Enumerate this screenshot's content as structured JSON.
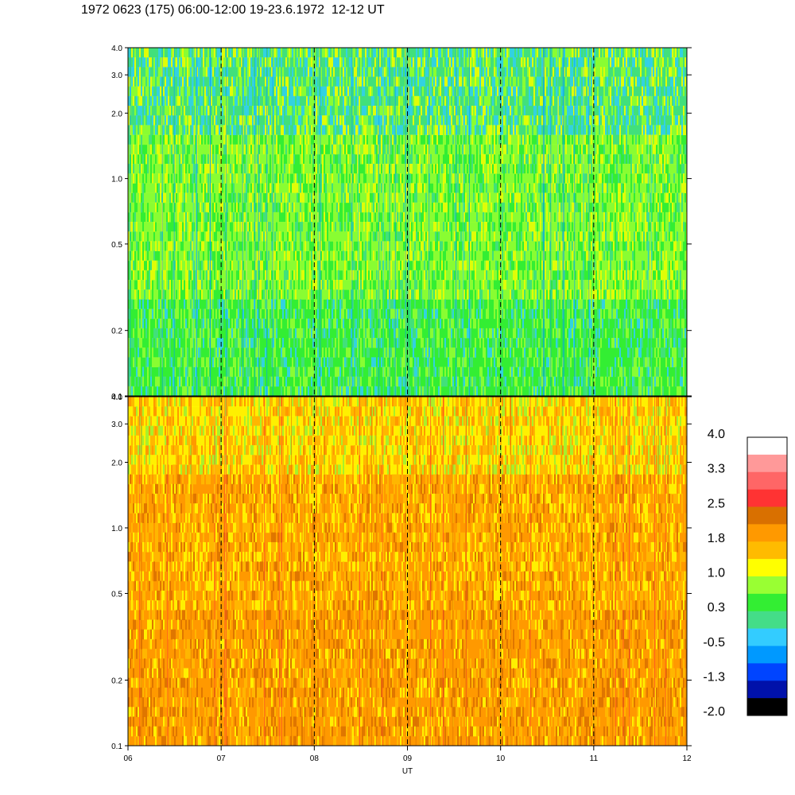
{
  "title": "1972 0623 (175) 06:00-12:00 19-23.6.1972  12-12 UT",
  "chart_data": {
    "type": "heatmap",
    "panels": [
      {
        "name": "top",
        "dominant_color": "green",
        "yticks": [
          "4.0",
          "3.0",
          "2.0",
          "1.0",
          "0.5",
          "0.2",
          "0.1"
        ],
        "ytick_values": [
          4.0,
          3.0,
          2.0,
          1.0,
          0.5,
          0.2,
          0.1
        ],
        "ylim": [
          0.1,
          4.0
        ],
        "yscale": "log"
      },
      {
        "name": "bottom",
        "dominant_color": "orange",
        "yticks": [
          "4.0",
          "3.0",
          "2.0",
          "1.0",
          "0.5",
          "0.2",
          "0.1"
        ],
        "ytick_values": [
          4.0,
          3.0,
          2.0,
          1.0,
          0.5,
          0.2,
          0.1
        ],
        "ylim": [
          0.1,
          4.0
        ],
        "yscale": "log"
      }
    ],
    "xlabel": "UT",
    "xticks": [
      "06",
      "07",
      "08",
      "09",
      "10",
      "11",
      "12"
    ],
    "xlim": [
      6,
      12
    ],
    "dashed_verticals_at": [
      7,
      8,
      9,
      10,
      11
    ],
    "colorbar": {
      "labels": [
        "4.0",
        "3.3",
        "2.5",
        "1.8",
        "1.0",
        "0.3",
        "-0.5",
        "-1.3",
        "-2.0"
      ],
      "colors": [
        "#ffffff",
        "#ff9999",
        "#ff6666",
        "#ff3333",
        "#d97000",
        "#ff9900",
        "#ffbb00",
        "#ffff00",
        "#99ff33",
        "#33ee33",
        "#44dd88",
        "#33ccff",
        "#0099ff",
        "#0044ff",
        "#0011aa",
        "#000000"
      ]
    }
  }
}
